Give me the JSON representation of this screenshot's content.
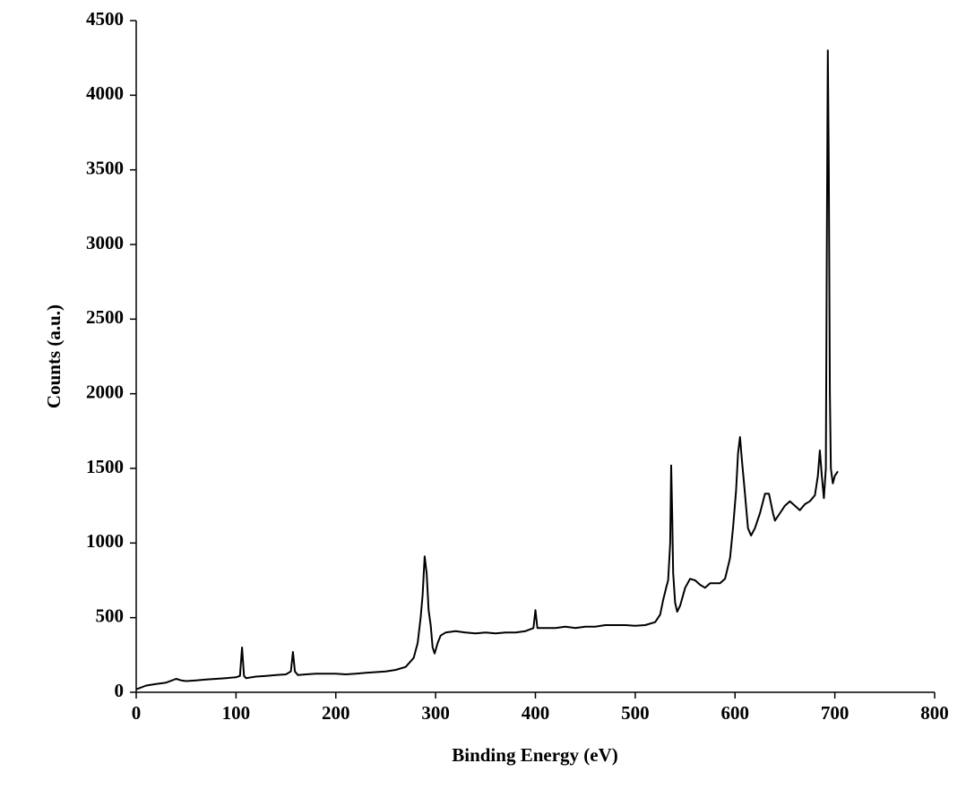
{
  "chart_data": {
    "type": "line",
    "xlabel": "Binding Energy (eV)",
    "ylabel": "Counts (a.u.)",
    "xlim": [
      0,
      800
    ],
    "xticks": [
      0,
      100,
      200,
      300,
      400,
      500,
      600,
      700,
      800
    ],
    "ylim": [
      0,
      4500
    ],
    "yticks": [
      0,
      500,
      1000,
      1500,
      2000,
      2500,
      3000,
      3500,
      4000,
      4500
    ],
    "x": [
      0,
      10,
      20,
      30,
      40,
      45,
      50,
      60,
      70,
      80,
      90,
      100,
      104,
      106,
      108,
      110,
      120,
      130,
      140,
      150,
      155,
      157,
      159,
      162,
      170,
      180,
      190,
      200,
      210,
      220,
      230,
      240,
      250,
      260,
      270,
      278,
      282,
      285,
      287,
      289,
      291,
      293,
      295,
      297,
      299,
      302,
      305,
      310,
      320,
      330,
      340,
      350,
      360,
      370,
      380,
      390,
      398,
      400,
      402,
      410,
      420,
      430,
      440,
      450,
      460,
      470,
      480,
      490,
      500,
      510,
      520,
      525,
      528,
      531,
      533,
      535,
      536,
      537,
      538,
      540,
      542,
      545,
      550,
      555,
      560,
      565,
      570,
      575,
      580,
      585,
      590,
      595,
      598,
      601,
      603,
      605,
      607,
      609,
      611,
      613,
      616,
      620,
      625,
      630,
      634,
      638,
      640,
      645,
      650,
      655,
      660,
      665,
      670,
      675,
      680,
      683,
      685,
      687,
      689,
      691,
      692,
      693,
      694,
      695,
      696,
      698,
      700,
      703
    ],
    "series": [
      {
        "color": "#000000",
        "values": [
          20,
          45,
          55,
          65,
          90,
          80,
          75,
          80,
          85,
          90,
          95,
          100,
          110,
          300,
          110,
          95,
          105,
          110,
          115,
          120,
          140,
          270,
          140,
          115,
          120,
          125,
          125,
          125,
          120,
          125,
          130,
          135,
          140,
          150,
          170,
          230,
          330,
          500,
          650,
          910,
          800,
          550,
          450,
          300,
          260,
          330,
          380,
          400,
          410,
          400,
          395,
          400,
          395,
          400,
          400,
          410,
          430,
          550,
          430,
          430,
          430,
          440,
          430,
          440,
          440,
          450,
          450,
          450,
          445,
          450,
          470,
          520,
          620,
          700,
          750,
          1000,
          1520,
          1200,
          800,
          600,
          540,
          580,
          700,
          760,
          750,
          720,
          700,
          730,
          730,
          730,
          760,
          900,
          1100,
          1350,
          1600,
          1710,
          1550,
          1400,
          1250,
          1100,
          1050,
          1100,
          1200,
          1330,
          1330,
          1200,
          1150,
          1200,
          1250,
          1280,
          1250,
          1220,
          1260,
          1280,
          1320,
          1450,
          1620,
          1450,
          1300,
          1500,
          3000,
          4300,
          3500,
          2000,
          1500,
          1400,
          1450,
          1480
        ]
      }
    ]
  }
}
